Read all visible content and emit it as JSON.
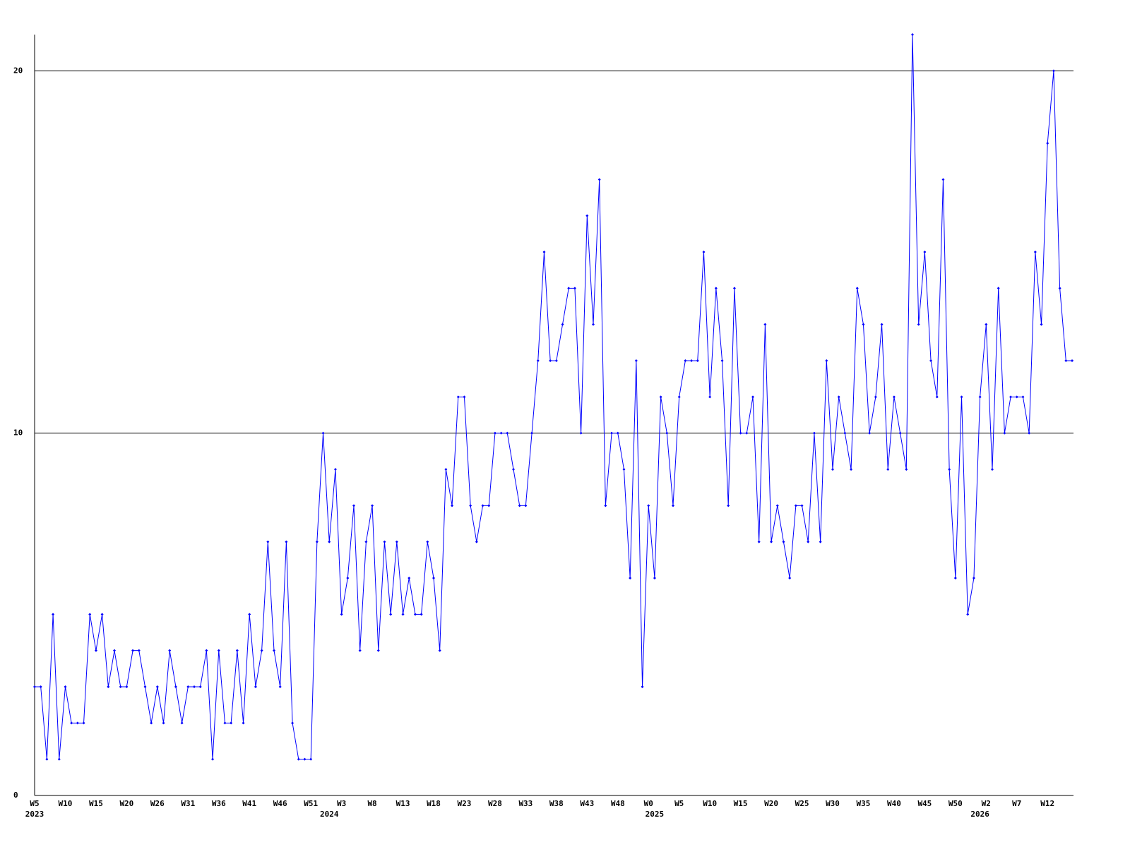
{
  "chart_data": {
    "type": "line",
    "color": "#0000ff",
    "grid": true,
    "ylim": [
      0,
      21
    ],
    "yticks": [
      0,
      10,
      20
    ],
    "categories": [
      "W5",
      null,
      null,
      null,
      null,
      "W10",
      null,
      null,
      null,
      null,
      "W15",
      null,
      null,
      null,
      null,
      "W20",
      null,
      null,
      null,
      null,
      "W26",
      null,
      null,
      null,
      null,
      "W31",
      null,
      null,
      null,
      null,
      "W36",
      null,
      null,
      null,
      null,
      "W41",
      null,
      null,
      null,
      null,
      "W46",
      null,
      null,
      null,
      null,
      "W51",
      null,
      null,
      null,
      null,
      "W3",
      null,
      null,
      null,
      null,
      "W8",
      null,
      null,
      null,
      null,
      "W13",
      null,
      null,
      null,
      null,
      "W18",
      null,
      null,
      null,
      null,
      "W23",
      null,
      null,
      null,
      null,
      "W28",
      null,
      null,
      null,
      null,
      "W33",
      null,
      null,
      null,
      null,
      "W38",
      null,
      null,
      null,
      null,
      "W43",
      null,
      null,
      null,
      null,
      "W48",
      null,
      null,
      null,
      null,
      "W0",
      null,
      null,
      null,
      null,
      "W5",
      null,
      null,
      null,
      null,
      "W10",
      null,
      null,
      null,
      null,
      "W15",
      null,
      null,
      null,
      null,
      "W20",
      null,
      null,
      null,
      null,
      "W25",
      null,
      null,
      null,
      null,
      "W30",
      null,
      null,
      null,
      null,
      "W35",
      null,
      null,
      null,
      null,
      "W40",
      null,
      null,
      null,
      null,
      "W45",
      null,
      null,
      null,
      null,
      "W50",
      null,
      null,
      null,
      null,
      "W2",
      null,
      null,
      null,
      null,
      "W7",
      null,
      null,
      null,
      null,
      "W12",
      null,
      null,
      null,
      null
    ],
    "years": [
      "2023",
      null,
      null,
      null,
      null,
      null,
      null,
      null,
      null,
      null,
      null,
      null,
      null,
      null,
      null,
      null,
      null,
      null,
      null,
      null,
      null,
      null,
      null,
      null,
      null,
      null,
      null,
      null,
      null,
      null,
      null,
      null,
      null,
      null,
      null,
      null,
      null,
      null,
      null,
      null,
      null,
      null,
      null,
      null,
      null,
      null,
      null,
      null,
      "2024",
      null,
      null,
      null,
      null,
      null,
      null,
      null,
      null,
      null,
      null,
      null,
      null,
      null,
      null,
      null,
      null,
      null,
      null,
      null,
      null,
      null,
      null,
      null,
      null,
      null,
      null,
      null,
      null,
      null,
      null,
      null,
      null,
      null,
      null,
      null,
      null,
      null,
      null,
      null,
      null,
      null,
      null,
      null,
      null,
      null,
      null,
      null,
      null,
      null,
      null,
      null,
      null,
      "2025",
      null,
      null,
      null,
      null,
      null,
      null,
      null,
      null,
      null,
      null,
      null,
      null,
      null,
      null,
      null,
      null,
      null,
      null,
      null,
      null,
      null,
      null,
      null,
      null,
      null,
      null,
      null,
      null,
      null,
      null,
      null,
      null,
      null,
      null,
      null,
      null,
      null,
      null,
      null,
      null,
      null,
      null,
      null,
      null,
      null,
      null,
      null,
      null,
      null,
      null,
      null,
      null,
      "2026",
      null,
      null,
      null,
      null,
      null,
      null,
      null,
      null,
      null,
      null,
      null,
      null,
      null,
      null,
      null
    ],
    "values": [
      3,
      3,
      1,
      5,
      1,
      3,
      2,
      2,
      2,
      5,
      4,
      5,
      3,
      4,
      3,
      3,
      4,
      4,
      3,
      2,
      3,
      2,
      4,
      3,
      2,
      3,
      3,
      3,
      4,
      1,
      4,
      2,
      2,
      4,
      2,
      5,
      3,
      4,
      7,
      4,
      3,
      7,
      2,
      1,
      1,
      1,
      7,
      10,
      7,
      9,
      5,
      6,
      8,
      4,
      7,
      8,
      4,
      7,
      5,
      7,
      5,
      6,
      5,
      5,
      7,
      6,
      4,
      9,
      8,
      11,
      11,
      8,
      7,
      8,
      8,
      10,
      10,
      10,
      9,
      8,
      8,
      10,
      12,
      15,
      12,
      12,
      13,
      14,
      14,
      10,
      16,
      13,
      17,
      8,
      10,
      10,
      9,
      6,
      12,
      3,
      8,
      6,
      11,
      10,
      8,
      11,
      12,
      12,
      12,
      15,
      11,
      14,
      12,
      8,
      14,
      10,
      10,
      11,
      7,
      13,
      7,
      8,
      7,
      6,
      8,
      8,
      7,
      10,
      7,
      12,
      9,
      11,
      10,
      9,
      14,
      13,
      10,
      11,
      13,
      9,
      11,
      10,
      9,
      21,
      13,
      15,
      12,
      11,
      17,
      9,
      6,
      11,
      5,
      6,
      11,
      13,
      9,
      14,
      10,
      11,
      11,
      11,
      10,
      15,
      13,
      18,
      20,
      14,
      12,
      12
    ]
  }
}
